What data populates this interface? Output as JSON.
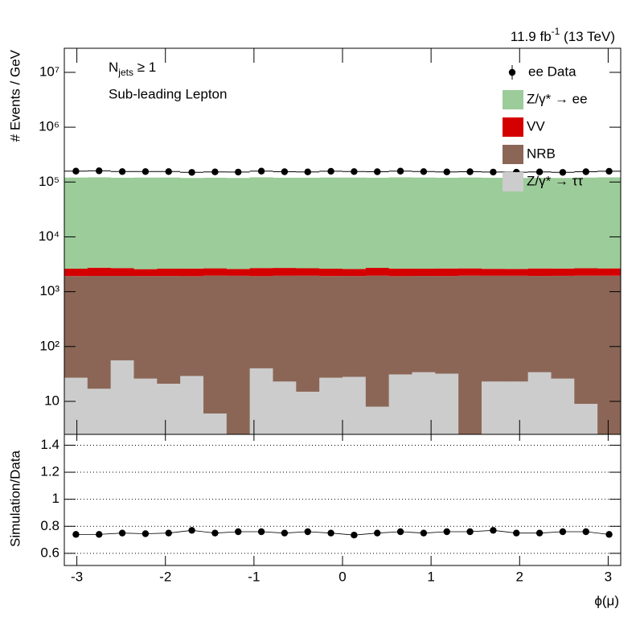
{
  "chart_data": [
    {
      "type": "histogram",
      "lumi": {
        "text": "11.9 fb",
        "sup": "-1",
        "suffix": " (13 TeV)"
      },
      "label_njets": {
        "symbol": "N",
        "sub": "jets",
        "rest": " ≥ 1"
      },
      "label_region": "Sub-leading Lepton",
      "ylabel": "# Events / GeV",
      "log_y": true,
      "ylim": [
        2.5,
        27500000
      ],
      "yticks": [
        10,
        {
          "value": 100,
          "label": "10²"
        },
        {
          "value": 1000,
          "label": "10³"
        },
        {
          "value": 10000,
          "label": "10⁴"
        },
        {
          "value": 100000,
          "label": "10⁵"
        },
        {
          "value": 1000000,
          "label": "10⁶"
        },
        {
          "value": 10000000,
          "label": "10⁷"
        }
      ],
      "bins": [
        -3.1416,
        -2.8798,
        -2.618,
        -2.3562,
        -2.0944,
        -1.8326,
        -1.5708,
        -1.309,
        -1.0472,
        -0.7854,
        -0.5236,
        -0.2618,
        0,
        0.2618,
        0.5236,
        0.7854,
        1.0472,
        1.309,
        1.5708,
        1.8326,
        2.0944,
        2.3562,
        2.618,
        2.8798,
        3.1416
      ],
      "data": {
        "name": "ee Data",
        "color": "#000000",
        "values": [
          158000,
          160000,
          155000,
          155000,
          155000,
          150000,
          153000,
          152000,
          158000,
          154000,
          153000,
          157000,
          155000,
          154000,
          158000,
          155000,
          153000,
          154000,
          152000,
          151000,
          153000,
          150000,
          154000,
          157000
        ]
      },
      "series": [
        {
          "name": "Z/γ* → ee",
          "color": "#9ccc99",
          "values": [
            118000,
            119000,
            117000,
            118000,
            118000,
            116000,
            117000,
            116000,
            119000,
            117000,
            117000,
            118000,
            118000,
            117000,
            119000,
            118000,
            117000,
            118000,
            117000,
            116000,
            117000,
            116000,
            118000,
            119000
          ]
        },
        {
          "name": "VV",
          "color": "#d40000",
          "values": [
            700,
            800,
            760,
            650,
            700,
            720,
            700,
            640,
            780,
            760,
            720,
            700,
            660,
            760,
            720,
            700,
            720,
            700,
            660,
            650,
            720,
            700,
            720,
            700
          ]
        },
        {
          "name": "NRB",
          "color": "#8b6656",
          "values": [
            1900,
            1920,
            1880,
            1900,
            1910,
            1890,
            1960,
            1950,
            1880,
            1930,
            1940,
            1900,
            1900,
            1950,
            1890,
            1900,
            1900,
            1960,
            1930,
            1930,
            1900,
            1920,
            1950,
            1960
          ]
        },
        {
          "name": "Z/γ* → ττ",
          "color": "#cccccc",
          "values": [
            27,
            17,
            56,
            26,
            21,
            29,
            6,
            0,
            40,
            23,
            15,
            27,
            28,
            8,
            31,
            34,
            32,
            0,
            23,
            23,
            34,
            26,
            9,
            0
          ]
        }
      ]
    },
    {
      "type": "scatter",
      "ylabel": "Simulation/Data",
      "xlabel": "ϕ(μ)",
      "color": "#000000",
      "grid": true,
      "xlim": [
        -3.1416,
        3.1416
      ],
      "xticks": [
        -3,
        -2,
        -1,
        0,
        1,
        2,
        3
      ],
      "ylim": [
        0.51,
        1.48
      ],
      "yticks": [
        0.6,
        0.8,
        1,
        1.2,
        1.4
      ],
      "x": [
        -3.0107,
        -2.7489,
        -2.4871,
        -2.2253,
        -1.9635,
        -1.7017,
        -1.4399,
        -1.1781,
        -0.9163,
        -0.6545,
        -0.3927,
        -0.1309,
        0.1309,
        0.3927,
        0.6545,
        0.9163,
        1.1781,
        1.4399,
        1.7017,
        1.9635,
        2.2253,
        2.4871,
        2.7489,
        3.0107
      ],
      "values": [
        0.74,
        0.74,
        0.75,
        0.745,
        0.75,
        0.77,
        0.75,
        0.76,
        0.76,
        0.75,
        0.76,
        0.75,
        0.735,
        0.75,
        0.76,
        0.75,
        0.76,
        0.76,
        0.77,
        0.75,
        0.75,
        0.76,
        0.76,
        0.74
      ]
    }
  ]
}
